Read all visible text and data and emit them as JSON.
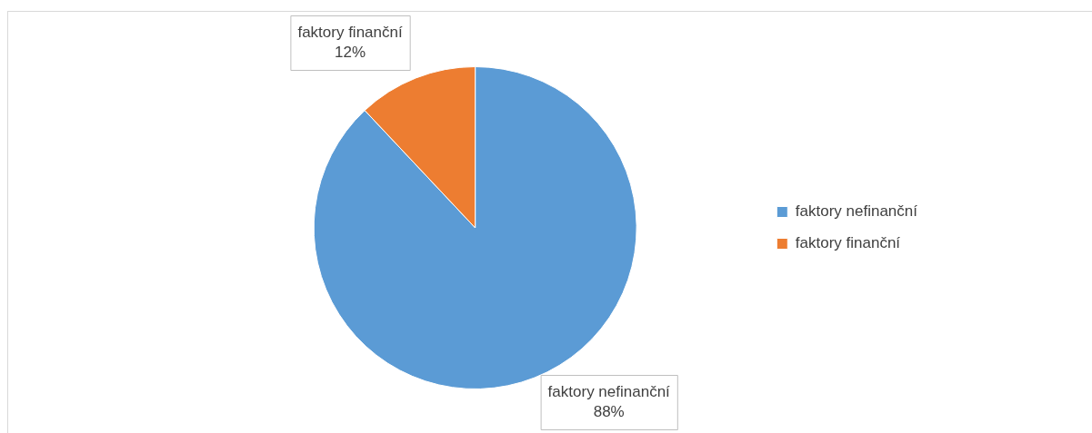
{
  "chart_data": {
    "type": "pie",
    "categories": [
      "faktory nefinanční",
      "faktory finanční"
    ],
    "values": [
      88,
      12
    ],
    "colors": [
      "#5b9bd5",
      "#ed7d31"
    ],
    "value_labels": [
      "88%",
      "12%"
    ],
    "legend": "right"
  }
}
